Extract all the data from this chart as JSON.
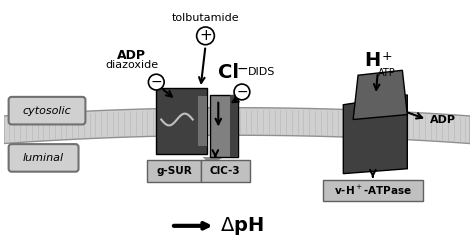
{
  "bg_color": "#ffffff",
  "membrane_color": "#c8c8c8",
  "membrane_stripe_color": "#a0a0a0",
  "protein_dark": "#404040",
  "protein_mid": "#707070",
  "protein_light": "#909090",
  "label_box_color": "#b0b0b0",
  "label_box_edge": "#606060",
  "cytosolic_label": "cytosolic",
  "luminal_label": "luminal",
  "tolbutamide_label": "tolbutamide",
  "adp_diazoxide_label": "ADP\ndiazoxide",
  "cl_label": "Cl",
  "dids_label": "DIDS",
  "h_label": "H",
  "atp_label": "ATP",
  "adp_label": "ADP",
  "gsur_label": "g-SUR",
  "clc3_label": "ClC-3",
  "vatpase_label": "v-H⁺-ATPase",
  "dph_label": "ΔpH",
  "figsize": [
    4.74,
    2.41
  ],
  "dpi": 100
}
